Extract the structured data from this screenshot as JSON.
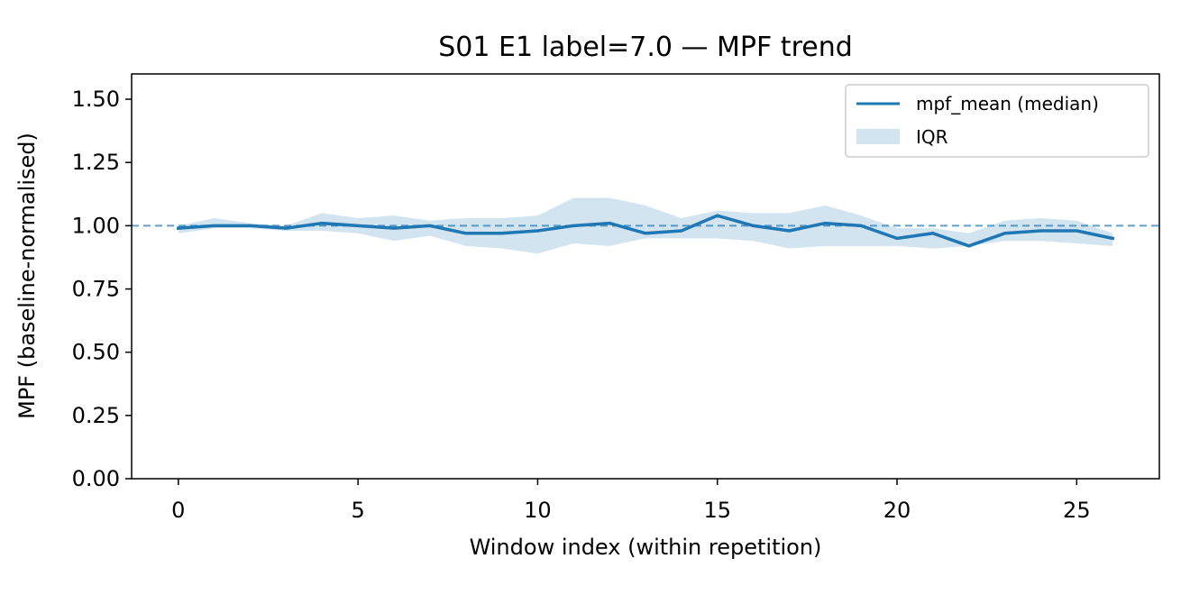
{
  "chart_data": {
    "type": "line",
    "title": "S01 E1 label=7.0 — MPF trend",
    "xlabel": "Window index (within repetition)",
    "ylabel": "MPF (baseline-normalised)",
    "xlim": [
      -1.3,
      27.3
    ],
    "ylim": [
      0,
      1.6
    ],
    "x_ticks": [
      0,
      5,
      10,
      15,
      20,
      25
    ],
    "x_tick_labels": [
      "0",
      "5",
      "10",
      "15",
      "20",
      "25"
    ],
    "y_ticks": [
      0,
      0.25,
      0.5,
      0.75,
      1.0,
      1.25,
      1.5
    ],
    "y_tick_labels": [
      "0.00",
      "0.25",
      "0.50",
      "0.75",
      "1.00",
      "1.25",
      "1.50"
    ],
    "grid": false,
    "legend_position": "top-right",
    "reference_line": {
      "y": 1.0,
      "style": "dashed"
    },
    "x": [
      0,
      1,
      2,
      3,
      4,
      5,
      6,
      7,
      8,
      9,
      10,
      11,
      12,
      13,
      14,
      15,
      16,
      17,
      18,
      19,
      20,
      21,
      22,
      23,
      24,
      25,
      26
    ],
    "series": [
      {
        "name": "mpf_mean (median)",
        "color": "#1f77b4",
        "values": [
          0.99,
          1.0,
          1.0,
          0.99,
          1.01,
          1.0,
          0.99,
          1.0,
          0.97,
          0.97,
          0.98,
          1.0,
          1.01,
          0.97,
          0.98,
          1.04,
          1.0,
          0.98,
          1.01,
          1.0,
          0.95,
          0.97,
          0.92,
          0.97,
          0.98,
          0.98,
          0.95
        ]
      }
    ],
    "bands": [
      {
        "name": "IQR",
        "color": "#1f77b4",
        "opacity": 0.2,
        "lower": [
          0.97,
          0.99,
          0.99,
          0.98,
          0.98,
          0.97,
          0.94,
          0.96,
          0.92,
          0.91,
          0.89,
          0.93,
          0.92,
          0.95,
          0.95,
          0.95,
          0.94,
          0.91,
          0.92,
          0.92,
          0.92,
          0.91,
          0.92,
          0.94,
          0.94,
          0.93,
          0.92
        ],
        "upper": [
          1.0,
          1.03,
          1.01,
          1.0,
          1.05,
          1.03,
          1.04,
          1.02,
          1.03,
          1.03,
          1.04,
          1.11,
          1.11,
          1.08,
          1.03,
          1.06,
          1.05,
          1.05,
          1.08,
          1.04,
          0.99,
          0.99,
          0.97,
          1.02,
          1.03,
          1.02,
          0.97
        ]
      }
    ]
  }
}
